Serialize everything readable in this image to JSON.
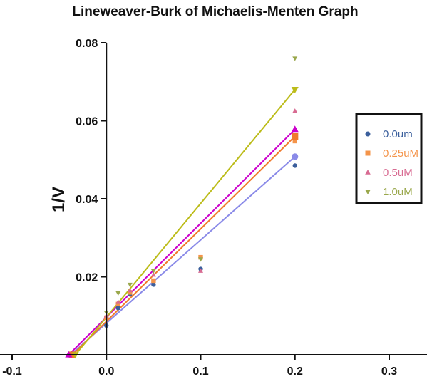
{
  "chart_data": {
    "type": "scatter",
    "title": "Lineweaver-Burk of Michaelis-Menten Graph",
    "xlabel": "",
    "ylabel": "1/V",
    "xlim": [
      -0.1,
      0.3
    ],
    "ylim": [
      0,
      0.08
    ],
    "xticks": [
      "-0.1",
      "0.0",
      "0.1",
      "0.2",
      "0.3"
    ],
    "yticks": [
      "0.02",
      "0.04",
      "0.06",
      "0.08"
    ],
    "xtick_values": [
      -0.1,
      0.0,
      0.1,
      0.2,
      0.3
    ],
    "ytick_values": [
      0.02,
      0.04,
      0.06,
      0.08
    ],
    "legend_position": "right",
    "grid": false,
    "series": [
      {
        "name": "0.0um",
        "marker": "circle",
        "color": "#3b5f9c",
        "line_color": "#8a8ae8",
        "points": [
          [
            0.0,
            0.0075
          ],
          [
            0.0125,
            0.012
          ],
          [
            0.025,
            0.0155
          ],
          [
            0.05,
            0.018
          ],
          [
            0.1,
            0.022
          ],
          [
            0.2,
            0.0485
          ]
        ],
        "fit_line": [
          [
            -0.038,
            0.0
          ],
          [
            0.2,
            0.0508
          ]
        ]
      },
      {
        "name": "0.25uM",
        "marker": "square",
        "color": "#f4944a",
        "line_color": "#f07a2c",
        "points": [
          [
            0.0,
            0.0095
          ],
          [
            0.0125,
            0.013
          ],
          [
            0.025,
            0.016
          ],
          [
            0.05,
            0.019
          ],
          [
            0.1,
            0.025
          ],
          [
            0.2,
            0.0548
          ]
        ],
        "fit_line": [
          [
            -0.036,
            0.0
          ],
          [
            0.2,
            0.056
          ]
        ]
      },
      {
        "name": "0.5uM",
        "marker": "triangle-up",
        "color": "#d86b92",
        "line_color": "#cc00cc",
        "points": [
          [
            0.0,
            0.01
          ],
          [
            0.0125,
            0.0135
          ],
          [
            0.025,
            0.0165
          ],
          [
            0.05,
            0.0205
          ],
          [
            0.1,
            0.0215
          ],
          [
            0.2,
            0.0625
          ]
        ],
        "fit_line": [
          [
            -0.04,
            0.0
          ],
          [
            0.2,
            0.0578
          ]
        ]
      },
      {
        "name": "1.0uM",
        "marker": "triangle-down",
        "color": "#9aa84c",
        "line_color": "#bcbc1a",
        "points": [
          [
            0.0,
            0.0108
          ],
          [
            0.0125,
            0.0158
          ],
          [
            0.025,
            0.018
          ],
          [
            0.05,
            0.0215
          ],
          [
            0.1,
            0.0245
          ],
          [
            0.2,
            0.076
          ]
        ],
        "fit_line": [
          [
            -0.033,
            0.0
          ],
          [
            0.2,
            0.068
          ]
        ]
      }
    ]
  }
}
